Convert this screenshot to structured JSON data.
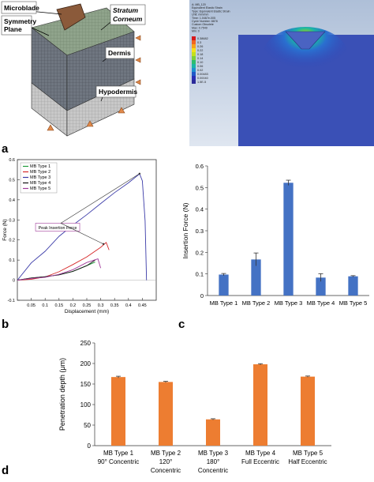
{
  "panel_letters": {
    "a": "a",
    "b": "b",
    "c": "c",
    "d": "d"
  },
  "model_labels": {
    "microblade": "Microblade",
    "symmetry_plane_1": "Symmetry",
    "symmetry_plane_2": "Plane",
    "stratum_1": "Stratum",
    "stratum_2": "Corneum",
    "dermis": "Dermis",
    "hypodermis": "Hypodermis"
  },
  "sim": {
    "legend_lines": [
      "A: MB_120",
      "Equivalent Elastic Strain",
      "Type: Equivalent Elastic Strain",
      "Unit: mm/mm",
      "Time: 1.0467e-005",
      "Cycle Number: 8878",
      "Custom Obsolete",
      "Max: 0.7549",
      "Min: 0"
    ],
    "legend_values": [
      "0.38682",
      "0.3",
      "0.26",
      "0.22",
      "0.18",
      "0.14",
      "0.10",
      "0.06",
      "0.02",
      "0.00483",
      "0.00040",
      "1.5E-5"
    ],
    "colors": [
      "#d7191c",
      "#f26522",
      "#f7a21b",
      "#f4e11a",
      "#c3e01d",
      "#7fcf3a",
      "#2ebd6e",
      "#1bb5a5",
      "#1f8fd0",
      "#2059c8",
      "#2a2fb5",
      "#2b2a9a"
    ]
  },
  "chart_data": [
    {
      "type": "line",
      "xlabel": "Displacement (mm)",
      "ylabel": "Force (N)",
      "xlim": [
        0,
        0.5
      ],
      "ylim": [
        -0.1,
        0.6
      ],
      "xticks": [
        "0.05",
        "0.1",
        "0.15",
        "0.2",
        "0.25",
        "0.3",
        "0.35",
        "0.4",
        "0.45"
      ],
      "yticks": [
        "-0.1",
        "0",
        "0.1",
        "0.2",
        "0.3",
        "0.4",
        "0.5",
        "0.6"
      ],
      "annotation": "Peak Insertion Force",
      "series": [
        {
          "name": "MB Type 1",
          "color": "#1f9a3a",
          "x": [
            0,
            0.05,
            0.1,
            0.15,
            0.2,
            0.25,
            0.28
          ],
          "y": [
            0,
            0.005,
            0.015,
            0.03,
            0.05,
            0.075,
            0.09
          ]
        },
        {
          "name": "MB Type 2",
          "color": "#d62728",
          "x": [
            0,
            0.05,
            0.1,
            0.15,
            0.2,
            0.25,
            0.3,
            0.32,
            0.33
          ],
          "y": [
            0,
            0.008,
            0.022,
            0.045,
            0.075,
            0.11,
            0.16,
            0.19,
            0.15
          ]
        },
        {
          "name": "MB Type 3",
          "color": "#3b3ba8",
          "x": [
            0,
            0.05,
            0.1,
            0.15,
            0.2,
            0.25,
            0.3,
            0.35,
            0.4,
            0.44,
            0.45,
            0.46,
            0.465
          ],
          "y": [
            0,
            0.08,
            0.14,
            0.22,
            0.28,
            0.33,
            0.38,
            0.43,
            0.48,
            0.53,
            0.5,
            0.3,
            0
          ]
        },
        {
          "name": "MB Type 4",
          "color": "#111111",
          "x": [
            0,
            0.05,
            0.1,
            0.15,
            0.2,
            0.25,
            0.28
          ],
          "y": [
            0,
            0.005,
            0.015,
            0.03,
            0.05,
            0.075,
            0.1
          ]
        },
        {
          "name": "MB Type 5",
          "color": "#a03a9a",
          "x": [
            0,
            0.05,
            0.1,
            0.15,
            0.2,
            0.25,
            0.29,
            0.3
          ],
          "y": [
            0,
            0.006,
            0.018,
            0.035,
            0.055,
            0.085,
            0.1,
            0.06
          ]
        }
      ]
    },
    {
      "type": "bar",
      "ylabel": "Insertion Force (N)",
      "ylim": [
        0,
        0.6
      ],
      "yticks": [
        "0",
        "0.1",
        "0.2",
        "0.3",
        "0.4",
        "0.5",
        "0.6"
      ],
      "categories": [
        "MB Type 1",
        "MB Type 2",
        "MB Type 3",
        "MB Type 4",
        "MB Type 5"
      ],
      "values": [
        0.097,
        0.167,
        0.522,
        0.083,
        0.089
      ],
      "errors": [
        0.005,
        0.03,
        0.012,
        0.018,
        0.003
      ],
      "color": "#4472c4"
    },
    {
      "type": "bar",
      "ylabel": "Penetration depth (μm)",
      "ylim": [
        0,
        250
      ],
      "yticks": [
        "0",
        "50",
        "100",
        "150",
        "200",
        "250"
      ],
      "categories": [
        [
          "MB Type 1",
          "90° Concentric"
        ],
        [
          "MB Type 2",
          "120°",
          "Concentric"
        ],
        [
          "MB Type 3",
          "180°",
          "Concentric"
        ],
        [
          "MB Type 4",
          "Full Eccentric"
        ],
        [
          "MB Type 5",
          "Half Eccentric"
        ]
      ],
      "values": [
        167,
        155,
        64,
        198,
        168
      ],
      "errors": [
        2,
        1.5,
        1.5,
        1.5,
        1.5
      ],
      "color": "#ed7d31"
    }
  ]
}
